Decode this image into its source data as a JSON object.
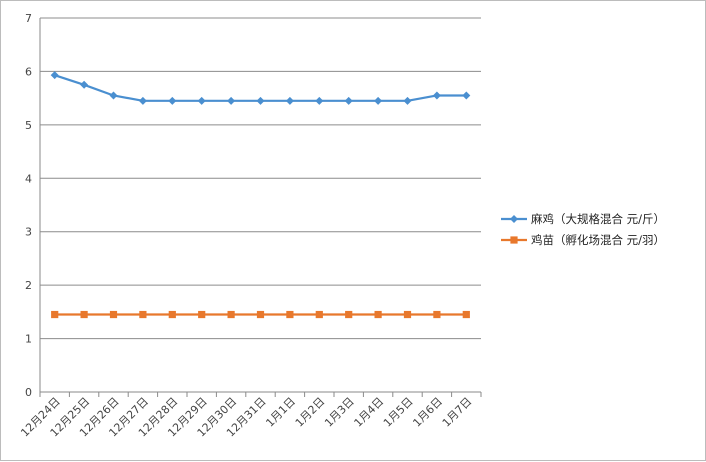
{
  "chart_data": {
    "type": "line",
    "categories": [
      "12月24日",
      "12月25日",
      "12月26日",
      "12月27日",
      "12月28日",
      "12月29日",
      "12月30日",
      "12月31日",
      "1月1日",
      "1月2日",
      "1月3日",
      "1月4日",
      "1月5日",
      "1月6日",
      "1月7日"
    ],
    "series": [
      {
        "name": "麻鸡（大规格混合 元/斤）",
        "color": "#4a8fd0",
        "marker": "diamond",
        "values": [
          5.93,
          5.75,
          5.55,
          5.45,
          5.45,
          5.45,
          5.45,
          5.45,
          5.45,
          5.45,
          5.45,
          5.45,
          5.45,
          5.55,
          5.55
        ]
      },
      {
        "name": "鸡苗（孵化场混合 元/羽）",
        "color": "#e8782c",
        "marker": "square",
        "values": [
          1.45,
          1.45,
          1.45,
          1.45,
          1.45,
          1.45,
          1.45,
          1.45,
          1.45,
          1.45,
          1.45,
          1.45,
          1.45,
          1.45,
          1.45
        ]
      }
    ],
    "ylim": [
      0,
      7
    ],
    "yticks": [
      0,
      1,
      2,
      3,
      4,
      5,
      6,
      7
    ],
    "grid": true,
    "legend_position": "right",
    "title": "",
    "xlabel": "",
    "ylabel": ""
  }
}
